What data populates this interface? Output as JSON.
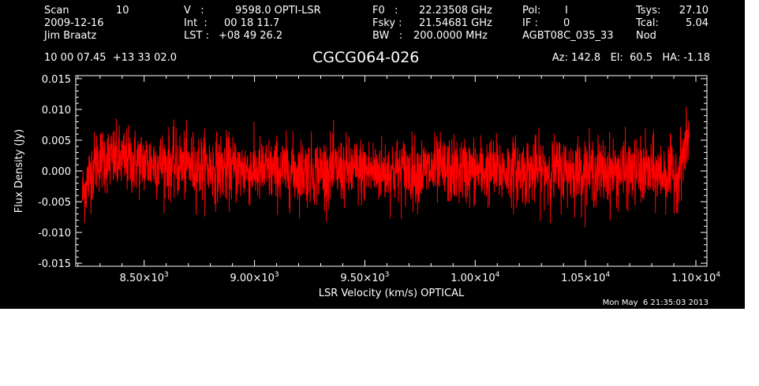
{
  "header": {
    "col1": {
      "scan_label": "Scan",
      "scan_value": "10",
      "date": "2009-12-16",
      "observer": "Jim Braatz",
      "coords": "10 00 07.45  +13 33 02.0"
    },
    "col2": {
      "v_label": "V   :",
      "v_value": "9598.0 OPTI-LSR",
      "int_label": "Int  :",
      "int_value": "00 18 11.7",
      "lst_label": "LST :",
      "lst_value": "+08 49 26.2"
    },
    "col3": {
      "f0_label": "F0   :",
      "f0_value": "22.23508 GHz",
      "fsky_label": "Fsky :",
      "fsky_value": "21.54681 GHz",
      "bw_label": "BW   :",
      "bw_value": "200.0000 MHz"
    },
    "col4": {
      "pol_label": "Pol:",
      "pol_value": "I",
      "if_label": "IF :",
      "if_value": "0",
      "project": "AGBT08C_035_33"
    },
    "col5": {
      "tsys_label": "Tsys:",
      "tsys_value": "27.10",
      "tcal_label": "Tcal:",
      "tcal_value": "5.04",
      "mode": "Nod"
    },
    "source": "CGCG064-026",
    "pointing": "Az: 142.8   El:  60.5   HA: -1.18",
    "timestamp": "Mon May  6 21:35:03 2013"
  },
  "chart_data": {
    "type": "line",
    "xlabel": "LSR Velocity (km/s) OPTICAL",
    "ylabel": "Flux Density (Jy)",
    "xlim": [
      8190,
      11050
    ],
    "ylim": [
      -0.0155,
      0.0155
    ],
    "x_ticks": [
      {
        "value": 8500,
        "mantissa": "8.50",
        "exp": "3"
      },
      {
        "value": 9000,
        "mantissa": "9.00",
        "exp": "3"
      },
      {
        "value": 9500,
        "mantissa": "9.50",
        "exp": "3"
      },
      {
        "value": 10000,
        "mantissa": "1.00",
        "exp": "4"
      },
      {
        "value": 10500,
        "mantissa": "1.05",
        "exp": "4"
      },
      {
        "value": 11000,
        "mantissa": "1.10",
        "exp": "4"
      }
    ],
    "y_ticks": [
      {
        "value": 0.015,
        "label": "0.015"
      },
      {
        "value": 0.01,
        "label": "0.010"
      },
      {
        "value": 0.005,
        "label": "0.005"
      },
      {
        "value": 0.0,
        "label": "0.000"
      },
      {
        "value": -0.005,
        "label": "-0.005"
      },
      {
        "value": -0.01,
        "label": "-0.010"
      },
      {
        "value": -0.015,
        "label": "-0.015"
      }
    ],
    "series": [
      {
        "color": "#ff0000",
        "x_start": 8220,
        "x_end": 10970,
        "noise_rms": 0.0027,
        "baseline": 0.0,
        "envelope": [
          {
            "x": 8220,
            "min": -0.01,
            "max": 0.002
          },
          {
            "x": 8260,
            "min": -0.006,
            "max": 0.006
          },
          {
            "x": 8290,
            "min": -0.005,
            "max": 0.009
          },
          {
            "x": 9000,
            "min": -0.007,
            "max": 0.007
          },
          {
            "x": 10500,
            "min": -0.008,
            "max": 0.008
          },
          {
            "x": 10920,
            "min": -0.006,
            "max": 0.005
          },
          {
            "x": 10970,
            "min": 0.001,
            "max": 0.0115
          }
        ]
      }
    ]
  }
}
